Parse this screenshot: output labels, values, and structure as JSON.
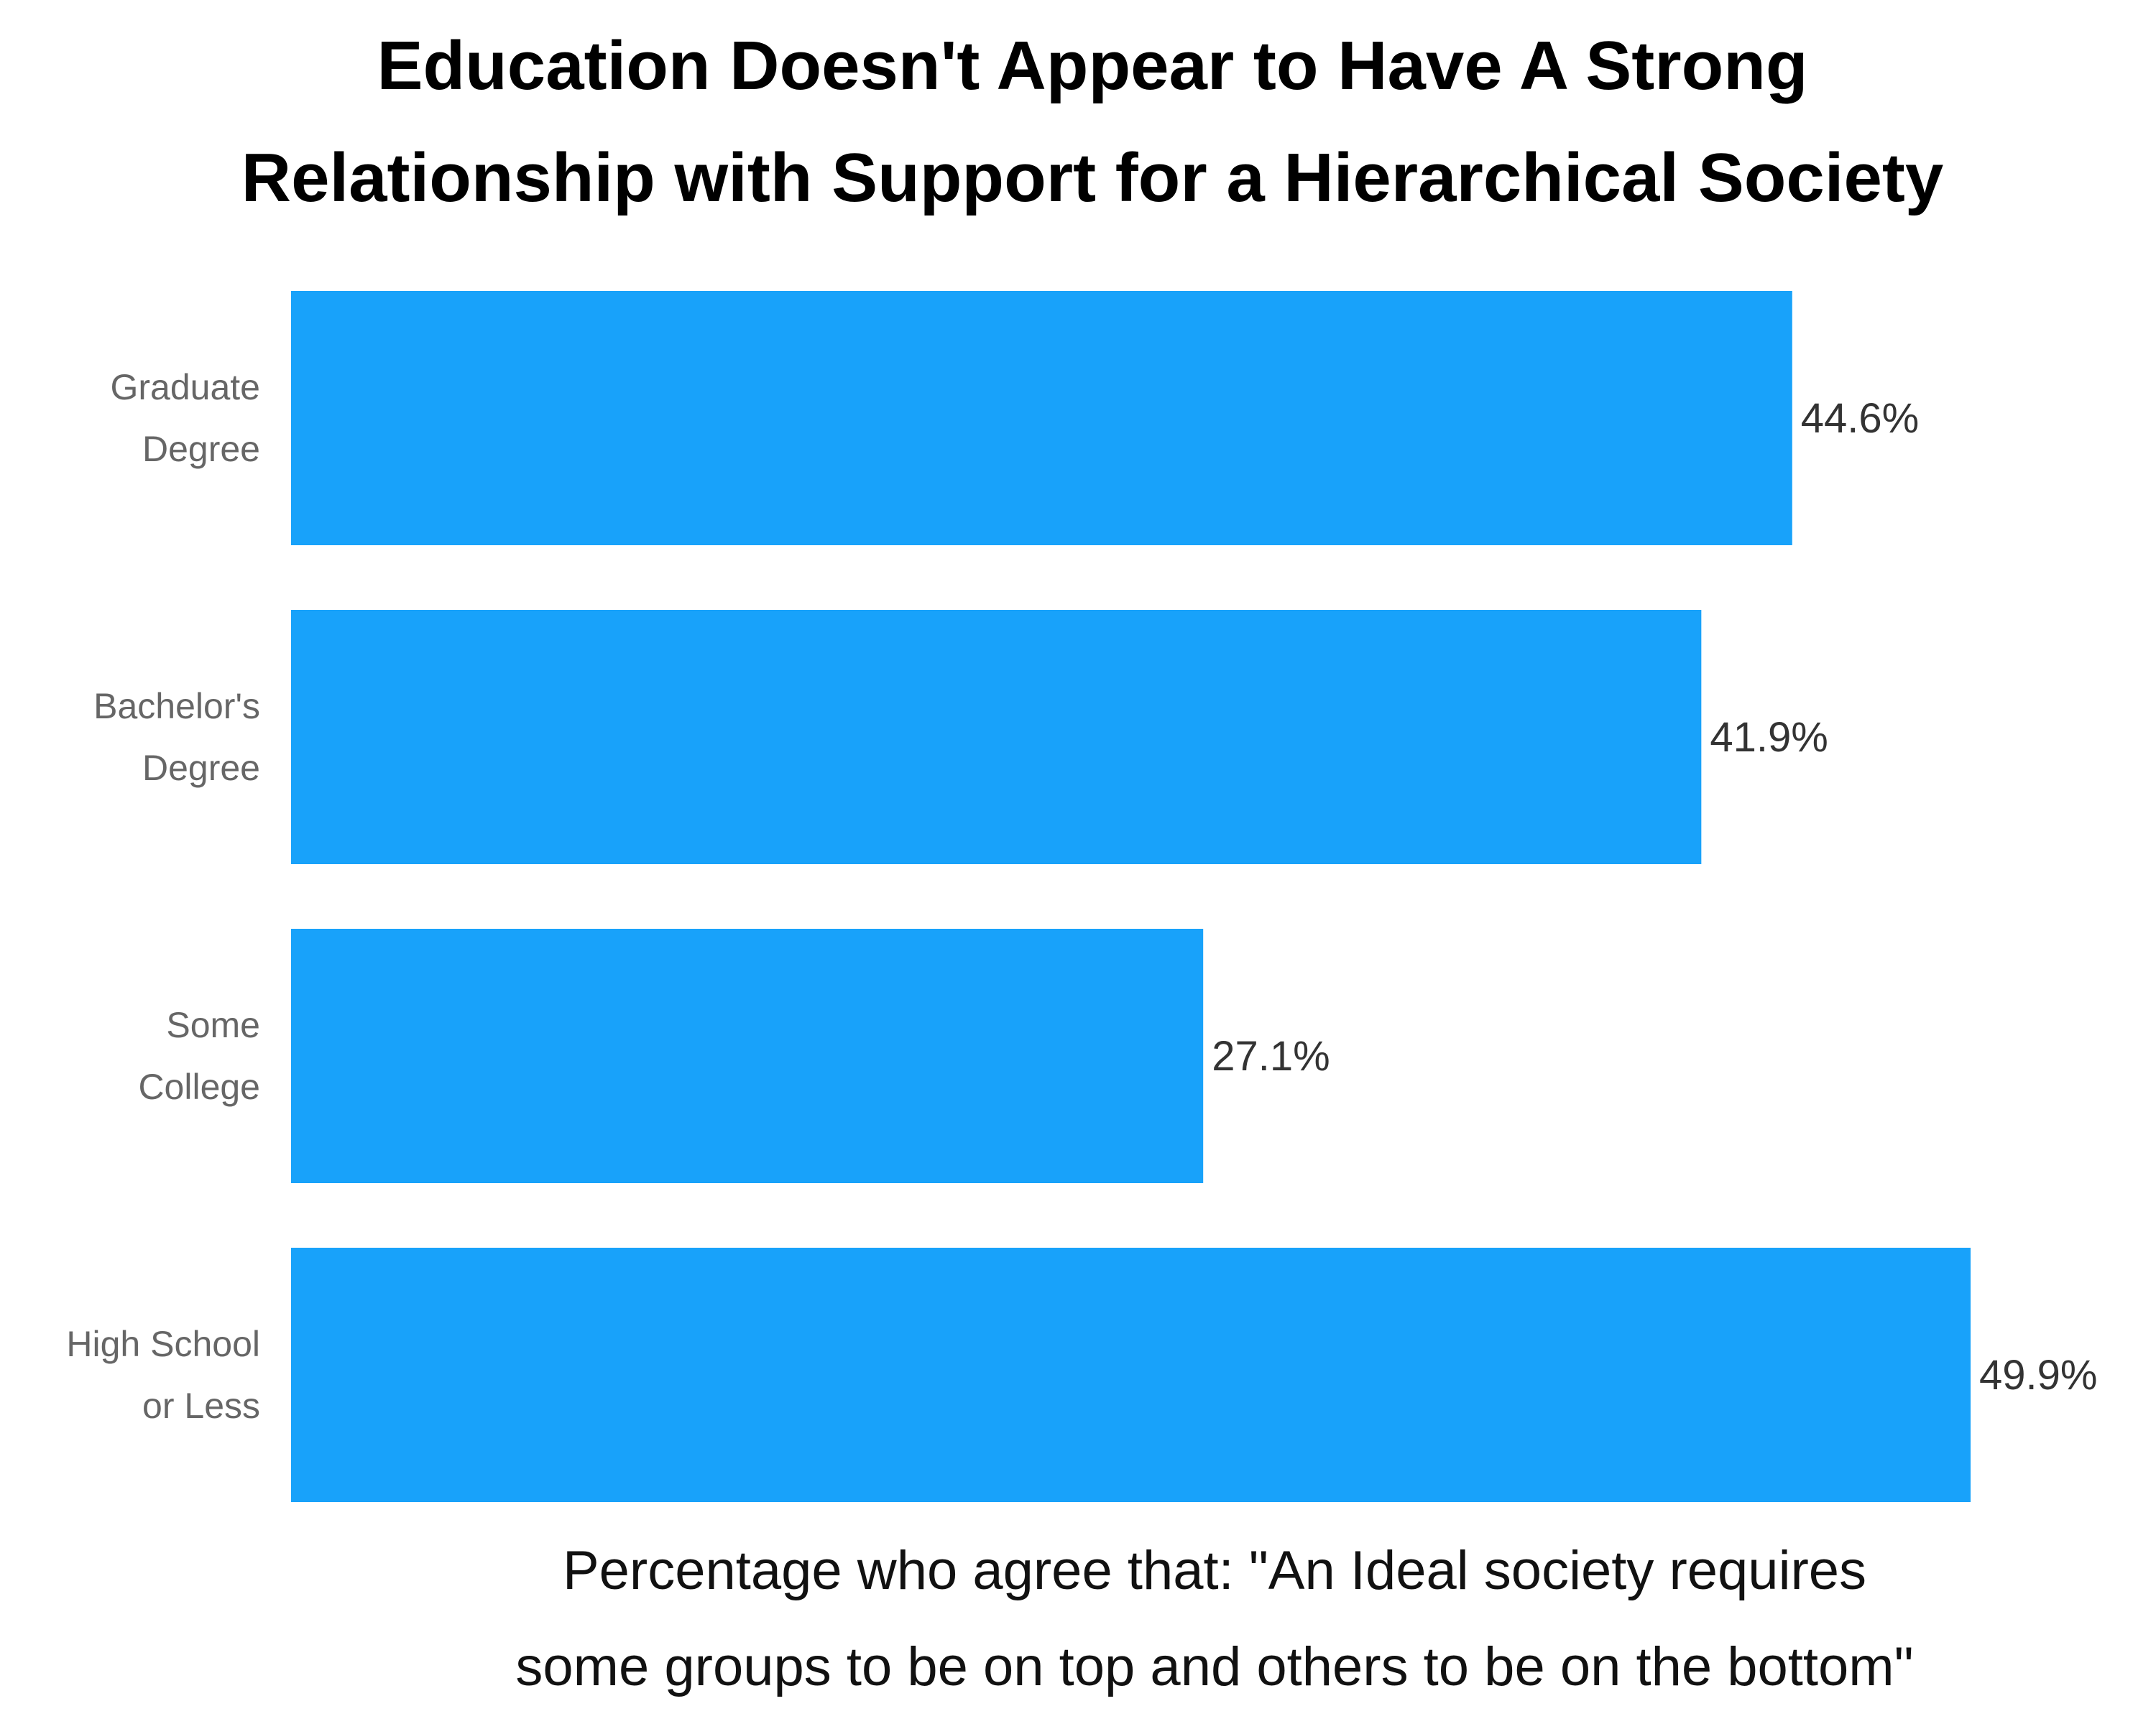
{
  "chart_data": {
    "type": "bar",
    "orientation": "horizontal",
    "title_lines": [
      "Education Doesn't Appear to Have A Strong",
      "Relationship with Support for a Hierarchical Society"
    ],
    "categories": [
      [
        "Graduate",
        "Degree"
      ],
      [
        "Bachelor's",
        "Degree"
      ],
      [
        "Some",
        "College"
      ],
      [
        "High School",
        "or Less"
      ]
    ],
    "values": [
      44.6,
      41.9,
      27.1,
      49.9
    ],
    "value_labels": [
      "44.6%",
      "41.9%",
      "27.1%",
      "49.9%"
    ],
    "xlabel_lines": [
      "Percentage who agree that: \"An Ideal society requires",
      "some groups to be on top and others to be on the bottom\""
    ],
    "xlim": [
      0,
      49.9
    ],
    "bar_color": "#18A2FA",
    "grid": false,
    "legend": "none"
  }
}
